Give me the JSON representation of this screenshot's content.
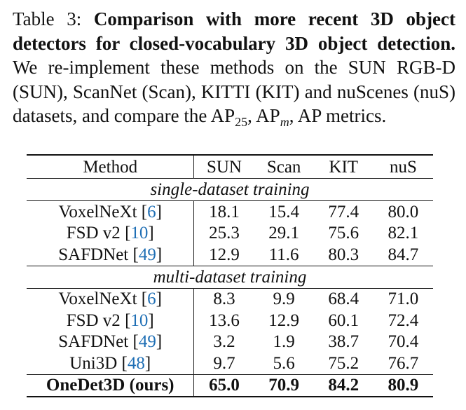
{
  "caption": {
    "label": "Table 3:",
    "title": "Comparison with more recent 3D object detectors for closed-vocabulary 3D object detection.",
    "body_1": "We re-implement these methods on the SUN RGB-D (SUN), ScanNet (Scan), KITTI (KIT) and nuScenes (nuS) datasets, and compare the AP",
    "sub_25": "25",
    "body_2": ", AP",
    "sub_m": "m",
    "body_3": ", AP metrics."
  },
  "table": {
    "headers": [
      "Method",
      "SUN",
      "Scan",
      "KIT",
      "nuS"
    ],
    "groups": [
      {
        "label": "single-dataset training",
        "rows": [
          {
            "method": "VoxelNeXt",
            "cite": "6",
            "values": [
              "18.1",
              "15.4",
              "77.4",
              "80.0"
            ]
          },
          {
            "method": "FSD v2",
            "cite": "10",
            "values": [
              "25.3",
              "29.1",
              "75.6",
              "82.1"
            ]
          },
          {
            "method": "SAFDNet",
            "cite": "49",
            "values": [
              "12.9",
              "11.6",
              "80.3",
              "84.7"
            ]
          }
        ]
      },
      {
        "label": "multi-dataset training",
        "rows": [
          {
            "method": "VoxelNeXt",
            "cite": "6",
            "values": [
              "8.3",
              "9.9",
              "68.4",
              "71.0"
            ]
          },
          {
            "method": "FSD v2",
            "cite": "10",
            "values": [
              "13.6",
              "12.9",
              "60.1",
              "72.4"
            ]
          },
          {
            "method": "SAFDNet",
            "cite": "49",
            "values": [
              "3.2",
              "1.9",
              "38.7",
              "70.4"
            ]
          },
          {
            "method": "Uni3D",
            "cite": "48",
            "values": [
              "9.7",
              "5.6",
              "75.2",
              "76.7"
            ]
          }
        ]
      }
    ],
    "ours": {
      "method": "OneDet3D (ours)",
      "values": [
        "65.0",
        "70.9",
        "84.2",
        "80.9"
      ]
    },
    "cite_color": "#1f6fb5"
  }
}
